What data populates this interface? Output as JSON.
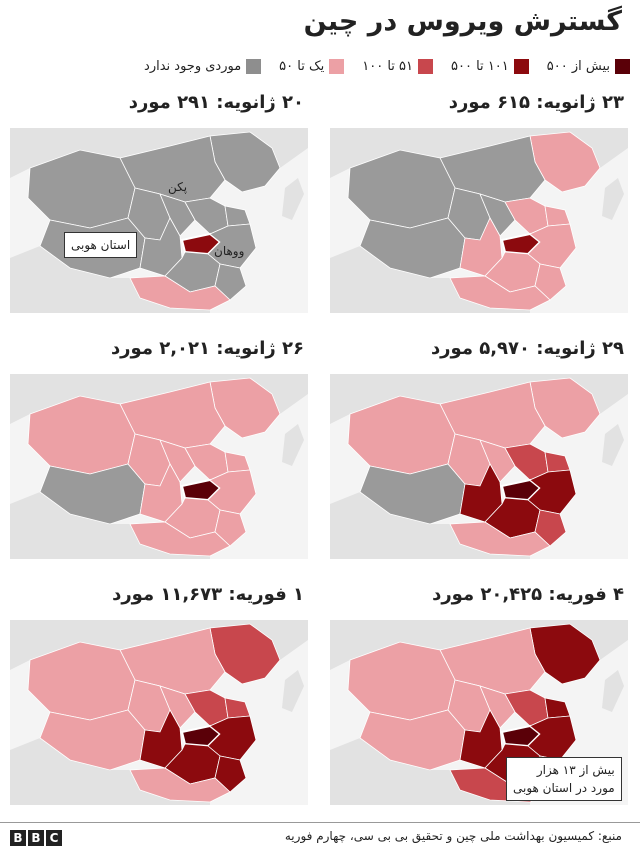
{
  "title": "گسترش ویروس در چین",
  "legend": [
    {
      "label": "بیش از ۵۰۰",
      "color": "#5a0008"
    },
    {
      "label": "۱۰۱ تا ۵۰۰",
      "color": "#8c0a0e"
    },
    {
      "label": "۵۱ تا ۱۰۰",
      "color": "#c8474d"
    },
    {
      "label": "یک تا ۵۰",
      "color": "#eca0a5"
    },
    {
      "label": "موردی وجود ندارد",
      "color": "#8e8e8e"
    }
  ],
  "panels": [
    {
      "date": "۲۰ ژانویه: ۲۹۱ مورد",
      "level": 0
    },
    {
      "date": "۲۳ ژانویه: ۶۱۵ مورد",
      "level": 1
    },
    {
      "date": "۲۶ ژانویه: ۲,۰۲۱ مورد",
      "level": 2
    },
    {
      "date": "۲۹ ژانویه: ۵,۹۷۰ مورد",
      "level": 3
    },
    {
      "date": "۱ فوریه: ۱۱,۶۷۳ مورد",
      "level": 4
    },
    {
      "date": "۴ فوریه: ۲۰,۴۲۵ مورد",
      "level": 5
    }
  ],
  "labels": {
    "beijing": "پکن",
    "wuhan": "ووهان",
    "hubei": "استان هوبی"
  },
  "annotation": {
    "line1": "بیش از ۱۳ هزار",
    "line2": "مورد در استان هوبی"
  },
  "source": "منبع: کمیسیون بهداشت ملی چین و تحقیق بی بی سی، چهارم فوریه",
  "brand": [
    "B",
    "B",
    "C"
  ]
}
